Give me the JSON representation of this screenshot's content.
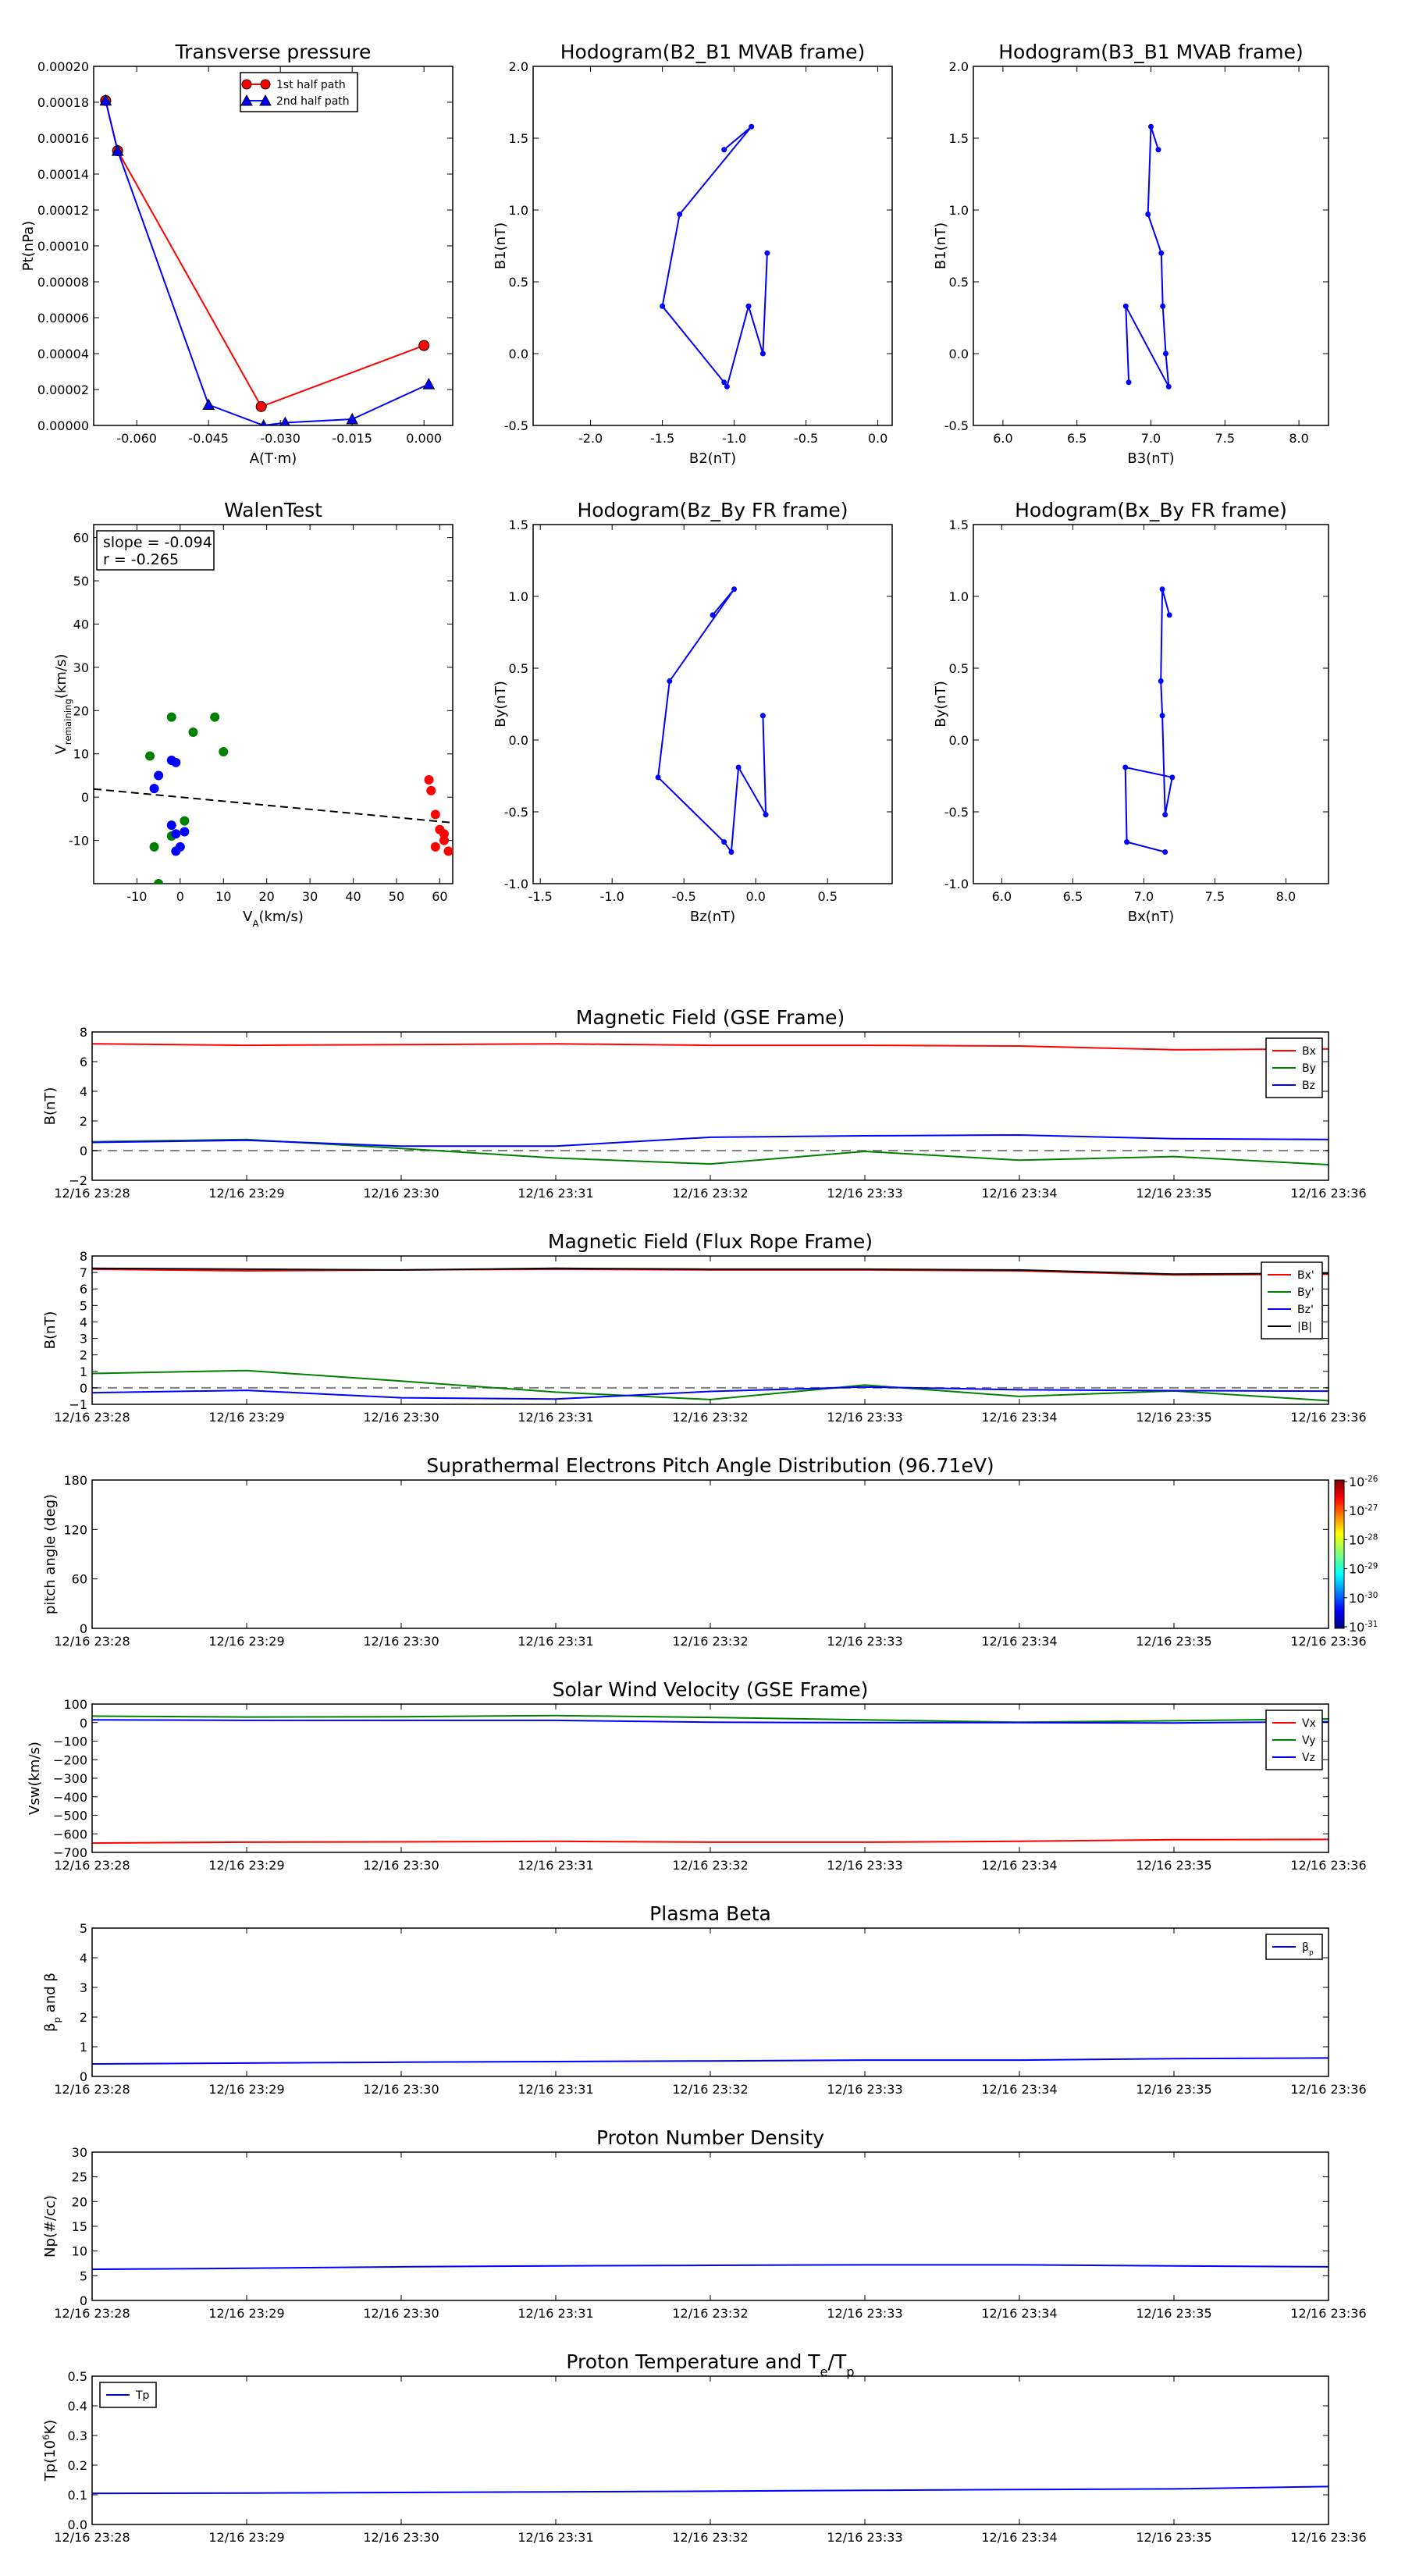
{
  "colors": {
    "red": "#ff0000",
    "green": "#008000",
    "blue": "#0000ff",
    "black": "#000000",
    "gray": "#808080"
  },
  "chart_data": [
    {
      "type": "line",
      "title": "Transverse pressure",
      "xlabel": "A(T·m)",
      "ylabel": "Pt(nPa)",
      "xlim": [
        -0.069,
        0.006
      ],
      "ylim": [
        0,
        0.0002
      ],
      "xticks": [
        "-0.060",
        "-0.045",
        "-0.030",
        "-0.015",
        "0.000"
      ],
      "yticks": [
        "0.00000",
        "0.00002",
        "0.00004",
        "0.00006",
        "0.00008",
        "0.00010",
        "0.00012",
        "0.00014",
        "0.00016",
        "0.00018",
        "0.00020"
      ],
      "legend_position": "top-right",
      "series": [
        {
          "name": "1st half path",
          "color": "#ff0000",
          "marker": "circle",
          "x": [
            -0.0665,
            -0.064,
            -0.034,
            0.0
          ],
          "y": [
            0.000181,
            0.000153,
            1.05e-05,
            4.45e-05
          ]
        },
        {
          "name": "2nd half path",
          "color": "#0000ff",
          "marker": "triangle",
          "x": [
            -0.0665,
            -0.064,
            -0.045,
            -0.0335,
            -0.029,
            -0.015,
            0.001
          ],
          "y": [
            0.000181,
            0.000153,
            1.15e-05,
            0.0,
            1.5e-06,
            3.5e-06,
            2.3e-05
          ]
        }
      ]
    },
    {
      "type": "line",
      "title": "Hodogram(B2_B1 MVAB frame)",
      "xlabel": "B2(nT)",
      "ylabel": "B1(nT)",
      "xlim": [
        -2.4,
        0.1
      ],
      "ylim": [
        -0.5,
        2.0
      ],
      "xticks": [
        "-2.0",
        "-1.5",
        "-1.0",
        "-0.5",
        "0.0"
      ],
      "yticks": [
        "-0.5",
        "0.0",
        "0.5",
        "1.0",
        "1.5",
        "2.0"
      ],
      "series": [
        {
          "color": "#0000ff",
          "x": [
            -1.07,
            -0.88,
            -1.38,
            -1.5,
            -1.07,
            -1.05,
            -0.9,
            -0.8,
            -0.77
          ],
          "y": [
            1.42,
            1.58,
            0.97,
            0.33,
            -0.2,
            -0.23,
            0.33,
            0.0,
            0.7
          ]
        }
      ]
    },
    {
      "type": "line",
      "title": "Hodogram(B3_B1 MVAB frame)",
      "xlabel": "B3(nT)",
      "ylabel": "B1(nT)",
      "xlim": [
        5.8,
        8.2
      ],
      "ylim": [
        -0.5,
        2.0
      ],
      "xticks": [
        "6.0",
        "6.5",
        "7.0",
        "7.5",
        "8.0"
      ],
      "yticks": [
        "-0.5",
        "0.0",
        "0.5",
        "1.0",
        "1.5",
        "2.0"
      ],
      "series": [
        {
          "color": "#0000ff",
          "x": [
            7.05,
            7.0,
            6.98,
            7.07,
            7.08,
            7.1,
            7.12,
            6.83,
            6.85
          ],
          "y": [
            1.42,
            1.58,
            0.97,
            0.7,
            0.33,
            0.0,
            -0.23,
            0.33,
            -0.2
          ]
        }
      ]
    },
    {
      "type": "scatter",
      "title": "WalenTest",
      "xlabel": "V",
      "xlabel_sub": "A",
      "xlabel_unit": "(km/s)",
      "ylabel": "V",
      "ylabel_sub": "remaining",
      "ylabel_unit": "(km/s)",
      "annotation_slope": "slope = -0.094",
      "annotation_r": "r = -0.265",
      "xlim": [
        -20,
        63
      ],
      "ylim": [
        -20,
        63
      ],
      "xticks": [
        "-10",
        "0",
        "10",
        "20",
        "30",
        "40",
        "50",
        "60"
      ],
      "yticks": [
        "-10",
        "0",
        "10",
        "20",
        "30",
        "40",
        "50",
        "60"
      ],
      "fit_line": {
        "slope": -0.094,
        "intercept": 0.0,
        "color": "#000000",
        "dash": true
      },
      "series": [
        {
          "color": "#008000",
          "x": [
            -2,
            -7,
            3,
            8,
            10,
            -6,
            -5,
            1,
            -2
          ],
          "y": [
            18.5,
            9.5,
            15,
            18.5,
            10.5,
            -11.5,
            -20,
            -5.5,
            -9
          ]
        },
        {
          "color": "#0000ff",
          "x": [
            -2,
            -1,
            -5,
            -6,
            -2,
            -1,
            1,
            0,
            -1
          ],
          "y": [
            8.5,
            8,
            5,
            2,
            -6.5,
            -8.5,
            -8,
            -11.5,
            -12.5
          ]
        },
        {
          "color": "#ff0000",
          "x": [
            57.5,
            58,
            59,
            60,
            59,
            61,
            62,
            61
          ],
          "y": [
            4,
            1.5,
            -4,
            -7.5,
            -11.5,
            -8.5,
            -12.5,
            -10
          ]
        }
      ]
    },
    {
      "type": "line",
      "title": "Hodogram(Bz_By FR frame)",
      "xlabel": "Bz(nT)",
      "ylabel": "By(nT)",
      "xlim": [
        -1.55,
        0.95
      ],
      "ylim": [
        -1.0,
        1.5
      ],
      "xticks": [
        "-1.5",
        "-1.0",
        "-0.5",
        "0.0",
        "0.5"
      ],
      "yticks": [
        "-1.0",
        "-0.5",
        "0.0",
        "0.5",
        "1.0",
        "1.5"
      ],
      "series": [
        {
          "color": "#0000ff",
          "x": [
            -0.3,
            -0.15,
            -0.6,
            -0.68,
            -0.22,
            -0.17,
            -0.12,
            0.07,
            0.05
          ],
          "y": [
            0.87,
            1.05,
            0.41,
            -0.26,
            -0.71,
            -0.78,
            -0.19,
            -0.52,
            0.17
          ]
        }
      ]
    },
    {
      "type": "line",
      "title": "Hodogram(Bx_By FR frame)",
      "xlabel": "Bx(nT)",
      "ylabel": "By(nT)",
      "xlim": [
        5.8,
        8.3
      ],
      "ylim": [
        -1.0,
        1.5
      ],
      "xticks": [
        "6.0",
        "6.5",
        "7.0",
        "7.5",
        "8.0"
      ],
      "yticks": [
        "-1.0",
        "-0.5",
        "0.0",
        "0.5",
        "1.0",
        "1.5"
      ],
      "series": [
        {
          "color": "#0000ff",
          "x": [
            7.18,
            7.13,
            7.12,
            7.13,
            7.15,
            7.2,
            6.87,
            6.88,
            7.15
          ],
          "y": [
            0.87,
            1.05,
            0.41,
            0.17,
            -0.52,
            -0.26,
            -0.19,
            -0.71,
            -0.78
          ]
        }
      ]
    },
    {
      "type": "line",
      "title": "Magnetic Field (GSE Frame)",
      "ylabel": "B(nT)",
      "x": [
        "12/16 23:28",
        "12/16 23:29",
        "12/16 23:30",
        "12/16 23:31",
        "12/16 23:32",
        "12/16 23:33",
        "12/16 23:34",
        "12/16 23:35",
        "12/16 23:36"
      ],
      "ylim": [
        -2,
        8
      ],
      "yticks": [
        "−2",
        "0",
        "2",
        "4",
        "6",
        "8"
      ],
      "zero_line": true,
      "legend_position": "top-right",
      "series": [
        {
          "name": "Bx",
          "color": "#ff0000",
          "values": [
            7.2,
            7.1,
            7.15,
            7.2,
            7.1,
            7.1,
            7.05,
            6.8,
            6.85
          ]
        },
        {
          "name": "By",
          "color": "#008000",
          "values": [
            0.6,
            0.75,
            0.15,
            -0.5,
            -0.9,
            -0.05,
            -0.65,
            -0.4,
            -0.95
          ]
        },
        {
          "name": "Bz",
          "color": "#0000ff",
          "values": [
            0.55,
            0.7,
            0.3,
            0.3,
            0.9,
            1.0,
            1.05,
            0.8,
            0.75
          ]
        }
      ]
    },
    {
      "type": "line",
      "title": "Magnetic Field (Flux Rope Frame)",
      "ylabel": "B(nT)",
      "x": [
        "12/16 23:28",
        "12/16 23:29",
        "12/16 23:30",
        "12/16 23:31",
        "12/16 23:32",
        "12/16 23:33",
        "12/16 23:34",
        "12/16 23:35",
        "12/16 23:36"
      ],
      "ylim": [
        -1,
        8
      ],
      "yticks": [
        "−1",
        "0",
        "1",
        "2",
        "3",
        "4",
        "5",
        "6",
        "7",
        "8"
      ],
      "zero_line": true,
      "legend_position": "top-right",
      "series": [
        {
          "name": "Bx'",
          "color": "#ff0000",
          "values": [
            7.2,
            7.1,
            7.15,
            7.2,
            7.15,
            7.15,
            7.1,
            6.85,
            6.9
          ]
        },
        {
          "name": "By'",
          "color": "#008000",
          "values": [
            0.87,
            1.05,
            0.41,
            -0.26,
            -0.71,
            0.17,
            -0.52,
            -0.19,
            -0.78
          ]
        },
        {
          "name": "Bz'",
          "color": "#0000ff",
          "values": [
            -0.3,
            -0.15,
            -0.6,
            -0.68,
            -0.22,
            0.05,
            -0.12,
            -0.17,
            -0.2
          ]
        },
        {
          "name": "|B|",
          "color": "#000000",
          "values": [
            7.25,
            7.2,
            7.15,
            7.25,
            7.2,
            7.2,
            7.15,
            6.9,
            6.95
          ]
        }
      ]
    },
    {
      "type": "heatmap",
      "title": "Suprathermal Electrons Pitch Angle Distribution (96.71eV)",
      "ylabel": "pitch angle (deg)",
      "x": [
        "12/16 23:28",
        "12/16 23:29",
        "12/16 23:30",
        "12/16 23:31",
        "12/16 23:32",
        "12/16 23:33",
        "12/16 23:34",
        "12/16 23:35",
        "12/16 23:36"
      ],
      "ylim": [
        0,
        180
      ],
      "yticks": [
        "0",
        "60",
        "120",
        "180"
      ],
      "colorbar_ticks": [
        "-26",
        "-27",
        "-28",
        "-29",
        "-30",
        "-31"
      ],
      "colorbar_base": "10"
    },
    {
      "type": "line",
      "title": "Solar Wind Velocity (GSE Frame)",
      "ylabel": "Vsw(km/s)",
      "x": [
        "12/16 23:28",
        "12/16 23:29",
        "12/16 23:30",
        "12/16 23:31",
        "12/16 23:32",
        "12/16 23:33",
        "12/16 23:34",
        "12/16 23:35",
        "12/16 23:36"
      ],
      "ylim": [
        -700,
        100
      ],
      "yticks": [
        "−700",
        "−600",
        "−500",
        "−400",
        "−300",
        "−200",
        "−100",
        "0",
        "100"
      ],
      "legend_position": "top-right",
      "series": [
        {
          "name": "Vx",
          "color": "#ff0000",
          "values": [
            -650,
            -645,
            -643,
            -640,
            -645,
            -645,
            -640,
            -632,
            -630
          ]
        },
        {
          "name": "Vy",
          "color": "#008000",
          "values": [
            35,
            30,
            32,
            38,
            28,
            15,
            2,
            10,
            20
          ]
        },
        {
          "name": "Vz",
          "color": "#0000ff",
          "values": [
            15,
            12,
            12,
            12,
            2,
            0,
            0,
            -2,
            5
          ]
        }
      ]
    },
    {
      "type": "line",
      "title": "Plasma Beta",
      "ylabel": "β",
      "ylabel_sub": "p",
      "ylabel_suffix": " and β",
      "x": [
        "12/16 23:28",
        "12/16 23:29",
        "12/16 23:30",
        "12/16 23:31",
        "12/16 23:32",
        "12/16 23:33",
        "12/16 23:34",
        "12/16 23:35",
        "12/16 23:36"
      ],
      "ylim": [
        0,
        5
      ],
      "yticks": [
        "0",
        "1",
        "2",
        "3",
        "4",
        "5"
      ],
      "legend_position": "top-right",
      "series": [
        {
          "name": "β",
          "name_sub": "p",
          "color": "#0000ff",
          "values": [
            0.42,
            0.45,
            0.48,
            0.5,
            0.52,
            0.55,
            0.55,
            0.6,
            0.62
          ]
        }
      ]
    },
    {
      "type": "line",
      "title": "Proton Number Density",
      "ylabel": "Np(#/cc)",
      "x": [
        "12/16 23:28",
        "12/16 23:29",
        "12/16 23:30",
        "12/16 23:31",
        "12/16 23:32",
        "12/16 23:33",
        "12/16 23:34",
        "12/16 23:35",
        "12/16 23:36"
      ],
      "ylim": [
        0,
        30
      ],
      "yticks": [
        "0",
        "5",
        "10",
        "15",
        "20",
        "25",
        "30"
      ],
      "series": [
        {
          "color": "#0000ff",
          "values": [
            6.3,
            6.5,
            6.8,
            7.0,
            7.1,
            7.2,
            7.2,
            7.0,
            6.8
          ]
        }
      ]
    },
    {
      "type": "line",
      "title": "Proton Temperature and T",
      "title_sub1": "e",
      "title_mid": "/T",
      "title_sub2": "p",
      "ylabel": "Tp(10",
      "ylabel_sup": "6",
      "ylabel_suffix": "K)",
      "x": [
        "12/16 23:28",
        "12/16 23:29",
        "12/16 23:30",
        "12/16 23:31",
        "12/16 23:32",
        "12/16 23:33",
        "12/16 23:34",
        "12/16 23:35",
        "12/16 23:36"
      ],
      "ylim": [
        0,
        0.5
      ],
      "yticks": [
        "0.0",
        "0.1",
        "0.2",
        "0.3",
        "0.4",
        "0.5"
      ],
      "legend_position": "top-left",
      "series": [
        {
          "name": "Tp",
          "color": "#0000ff",
          "values": [
            0.105,
            0.106,
            0.108,
            0.11,
            0.112,
            0.115,
            0.118,
            0.12,
            0.128
          ]
        }
      ]
    }
  ]
}
